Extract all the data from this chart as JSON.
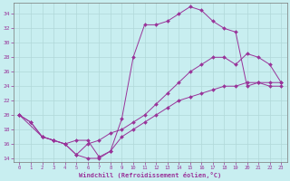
{
  "xlabel": "Windchill (Refroidissement éolien,°C)",
  "bg_color": "#c8eef0",
  "grid_color": "#b0d8d8",
  "line_color": "#993399",
  "xlim": [
    -0.5,
    23.5
  ],
  "ylim": [
    13.5,
    35.5
  ],
  "xticks": [
    0,
    1,
    2,
    3,
    4,
    5,
    6,
    7,
    8,
    9,
    10,
    11,
    12,
    13,
    14,
    15,
    16,
    17,
    18,
    19,
    20,
    21,
    22,
    23
  ],
  "yticks": [
    14,
    16,
    18,
    20,
    22,
    24,
    26,
    28,
    30,
    32,
    34
  ],
  "line1_x": [
    0,
    1,
    2,
    3,
    4,
    5,
    6,
    7,
    8,
    9,
    10,
    11,
    12,
    13,
    14,
    15,
    16,
    17,
    18,
    19,
    20,
    21,
    22,
    23
  ],
  "line1_y": [
    20,
    19,
    17,
    16.5,
    16,
    16.5,
    16.5,
    14.2,
    15,
    19.5,
    28,
    32.5,
    32.5,
    33,
    34,
    35,
    34.5,
    33,
    32,
    31.5,
    24,
    24.5,
    24,
    24
  ],
  "line2_x": [
    0,
    2,
    3,
    4,
    5,
    6,
    7,
    8,
    9,
    10,
    11,
    12,
    13,
    14,
    15,
    16,
    17,
    18,
    19,
    20,
    21,
    22,
    23
  ],
  "line2_y": [
    20,
    17,
    16.5,
    16,
    14.5,
    16,
    16.5,
    17.5,
    18,
    19,
    20,
    21.5,
    23,
    24.5,
    26,
    27,
    28,
    28,
    27,
    28.5,
    28,
    27,
    24.5
  ],
  "line3_x": [
    0,
    1,
    2,
    3,
    4,
    5,
    6,
    7,
    8,
    9,
    10,
    11,
    12,
    13,
    14,
    15,
    16,
    17,
    18,
    19,
    20,
    21,
    22,
    23
  ],
  "line3_y": [
    20,
    19,
    17,
    16.5,
    16,
    14.5,
    14,
    14,
    15,
    17,
    18,
    19,
    20,
    21,
    22,
    22.5,
    23,
    23.5,
    24,
    24,
    24.5,
    24.5,
    24.5,
    24.5
  ]
}
